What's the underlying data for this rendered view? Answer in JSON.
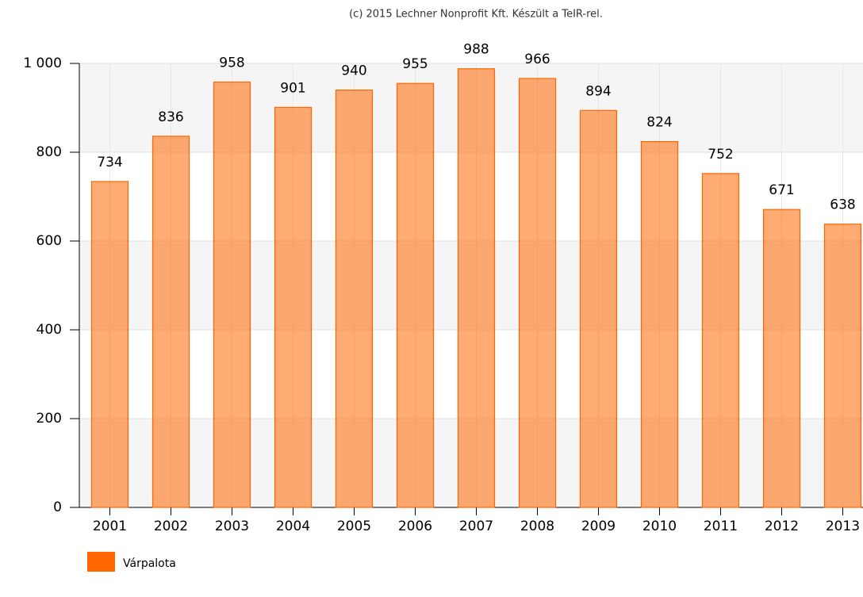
{
  "chart_data": {
    "type": "bar",
    "subtitle": "(c) 2015 Lechner Nonprofit Kft. Készült a TeIR-rel.",
    "categories": [
      "2001",
      "2002",
      "2003",
      "2004",
      "2005",
      "2006",
      "2007",
      "2008",
      "2009",
      "2010",
      "2011",
      "2012",
      "2013"
    ],
    "series": [
      {
        "name": "Várpalota",
        "color": "#ff6600",
        "values": [
          734,
          836,
          958,
          901,
          940,
          955,
          988,
          966,
          894,
          824,
          752,
          671,
          638
        ]
      }
    ],
    "ylim": [
      0,
      1000
    ],
    "yticks": [
      0,
      200,
      400,
      600,
      800,
      {
        "value": 1000,
        "label": "1 000"
      }
    ],
    "grid": true
  }
}
